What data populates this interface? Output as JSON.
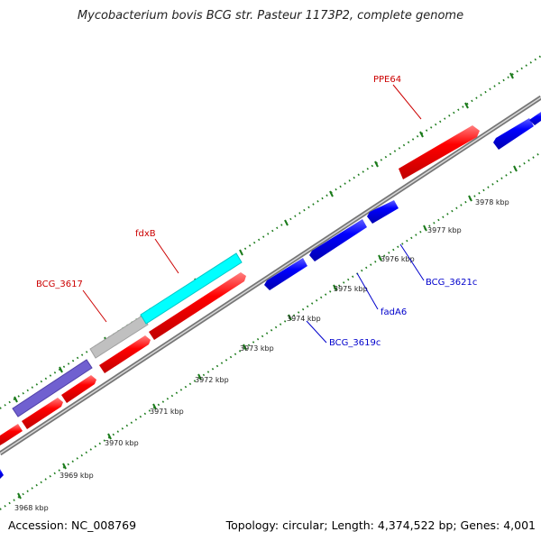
{
  "title": "Mycobacterium bovis BCG str. Pasteur 1173P2, complete genome",
  "accession": "Accession: NC_008769",
  "summary": "Topology: circular; Length: 4,374,522 bp; Genes: 4,001",
  "colors": {
    "forward_gene": "#ff0000",
    "reverse_gene": "#0000ff",
    "backbone": "#888888",
    "tick_marks": "#1a7a1a",
    "label_forward": "#cc0000",
    "label_reverse": "#0000cc",
    "highlight_cyan": "#00ffff",
    "highlight_gray": "#c0c0c0",
    "highlight_purple": "#7060d0"
  },
  "scale": {
    "tick_labels": [
      "3968 kbp",
      "3969 kbp",
      "3970 kbp",
      "3971 kbp",
      "3972 kbp",
      "3973 kbp",
      "3974 kbp",
      "3975 kbp",
      "3976 kbp",
      "3977 kbp",
      "3978 kbp"
    ]
  },
  "gene_labels": {
    "ppe64": "PPE64",
    "fdxb": "fdxB",
    "bcg_3617": "BCG_3617",
    "bcg_3619c": "BCG_3619c",
    "fada6": "fadA6",
    "bcg_3621c": "BCG_3621c"
  }
}
